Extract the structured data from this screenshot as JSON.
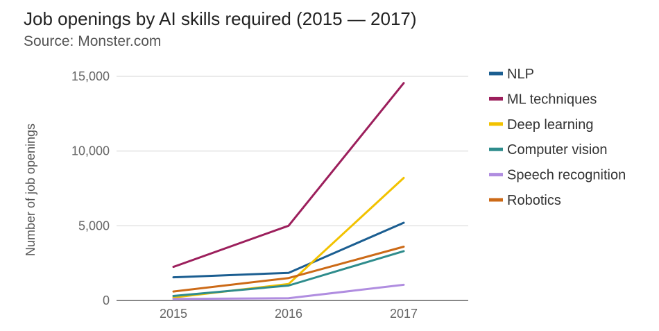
{
  "chart_data": {
    "type": "line",
    "title": "Job openings by AI skills required (2015 — 2017)",
    "subtitle": "Source: Monster.com",
    "xlabel": "",
    "ylabel": "Number of job openings",
    "x": [
      "2015",
      "2016",
      "2017"
    ],
    "yticks": [
      0,
      5000,
      10000,
      15000
    ],
    "ytick_labels": [
      "0",
      "5,000",
      "10,000",
      "15,000"
    ],
    "ylim": [
      0,
      15000
    ],
    "grid": true,
    "legend_position": "right",
    "series": [
      {
        "name": "NLP",
        "color": "#1b5e91",
        "values": [
          1550,
          1850,
          5200
        ]
      },
      {
        "name": "ML techniques",
        "color": "#9c1f5c",
        "values": [
          2250,
          5000,
          14550
        ]
      },
      {
        "name": "Deep learning",
        "color": "#f2c200",
        "values": [
          200,
          1100,
          8200
        ]
      },
      {
        "name": "Computer vision",
        "color": "#2e8c8c",
        "values": [
          300,
          1000,
          3300
        ]
      },
      {
        "name": "Speech recognition",
        "color": "#b08de0",
        "values": [
          100,
          150,
          1050
        ]
      },
      {
        "name": "Robotics",
        "color": "#cc6a17",
        "values": [
          600,
          1500,
          3600
        ]
      }
    ]
  }
}
